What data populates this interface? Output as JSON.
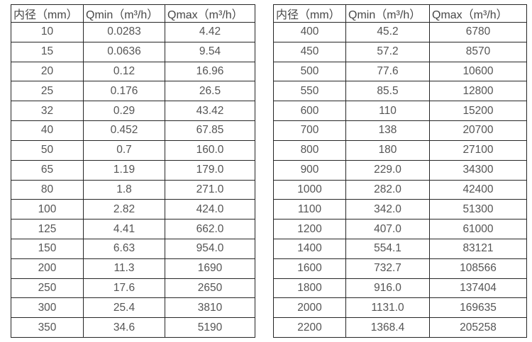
{
  "page": {
    "background_color": "#ffffff",
    "border_color": "#262626",
    "text_color": "#4d4d4d"
  },
  "tables": [
    {
      "name": "flow-spec-small-diameters",
      "headers": [
        "内径（mm）",
        "Qmin（m³/h）",
        "Qmax（m³/h）"
      ],
      "rows": [
        [
          "10",
          "0.0283",
          "4.42"
        ],
        [
          "15",
          "0.0636",
          "9.54"
        ],
        [
          "20",
          "0.12",
          "16.96"
        ],
        [
          "25",
          "0.176",
          "26.5"
        ],
        [
          "32",
          "0.29",
          "43.42"
        ],
        [
          "40",
          "0.452",
          "67.85"
        ],
        [
          "50",
          "0.7",
          "160.0"
        ],
        [
          "65",
          "1.19",
          "179.0"
        ],
        [
          "80",
          "1.8",
          "271.0"
        ],
        [
          "100",
          "2.82",
          "424.0"
        ],
        [
          "125",
          "4.41",
          "662.0"
        ],
        [
          "150",
          "6.63",
          "954.0"
        ],
        [
          "200",
          "11.3",
          "1690"
        ],
        [
          "250",
          "17.6",
          "2650"
        ],
        [
          "300",
          "25.4",
          "3810"
        ],
        [
          "350",
          "34.6",
          "5190"
        ]
      ]
    },
    {
      "name": "flow-spec-large-diameters",
      "headers": [
        "内径（mm）",
        "Qmin（m³/h）",
        "Qmax（m³/h）"
      ],
      "rows": [
        [
          "400",
          "45.2",
          "6780"
        ],
        [
          "450",
          "57.2",
          "8570"
        ],
        [
          "500",
          "77.6",
          "10600"
        ],
        [
          "550",
          "85.5",
          "12800"
        ],
        [
          "600",
          "110",
          "15200"
        ],
        [
          "700",
          "138",
          "20700"
        ],
        [
          "800",
          "180",
          "27100"
        ],
        [
          "900",
          "229.0",
          "34300"
        ],
        [
          "1000",
          "282.0",
          "42400"
        ],
        [
          "1100",
          "342.0",
          "51300"
        ],
        [
          "1200",
          "407.0",
          "61000"
        ],
        [
          "1400",
          "554.1",
          "83121"
        ],
        [
          "1600",
          "732.7",
          "108566"
        ],
        [
          "1800",
          "916.0",
          "137404"
        ],
        [
          "2000",
          "1131.0",
          "169635"
        ],
        [
          "2200",
          "1368.4",
          "205258"
        ]
      ]
    }
  ]
}
